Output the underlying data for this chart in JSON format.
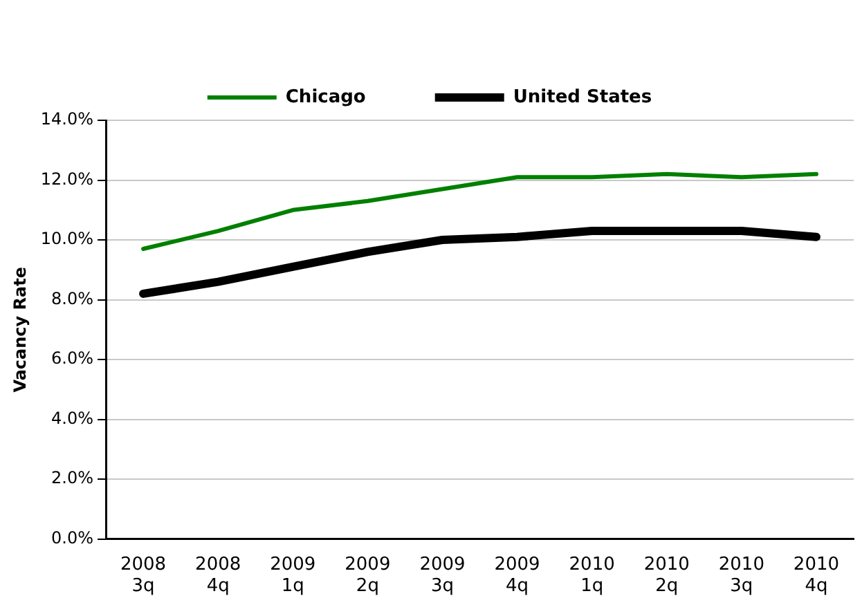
{
  "chart_data": {
    "type": "line",
    "ylabel": "Vacancy Rate",
    "categories": [
      "2008 3q",
      "2008 4q",
      "2009 1q",
      "2009 2q",
      "2009 3q",
      "2009 4q",
      "2010 1q",
      "2010 2q",
      "2010 3q",
      "2010 4q"
    ],
    "series": [
      {
        "name": "Chicago",
        "color": "#008000",
        "values": [
          9.7,
          10.3,
          11.0,
          11.3,
          11.7,
          12.1,
          12.1,
          12.2,
          12.1,
          12.2
        ]
      },
      {
        "name": "United States",
        "color": "#000000",
        "values": [
          8.2,
          8.6,
          9.1,
          9.6,
          10.0,
          10.1,
          10.3,
          10.3,
          10.3,
          10.1
        ]
      }
    ],
    "ylim": [
      0,
      14
    ],
    "yticks": [
      {
        "value": 0,
        "label": "0.0%"
      },
      {
        "value": 2,
        "label": "2.0%"
      },
      {
        "value": 4,
        "label": "4.0%"
      },
      {
        "value": 6,
        "label": "6.0%"
      },
      {
        "value": 8,
        "label": "8.0%"
      },
      {
        "value": 10,
        "label": "10.0%"
      },
      {
        "value": 12,
        "label": "12.0%"
      },
      {
        "value": 14,
        "label": "14.0%"
      }
    ],
    "grid": "y",
    "legend": "top",
    "marker": "none",
    "line_style": "solid"
  }
}
